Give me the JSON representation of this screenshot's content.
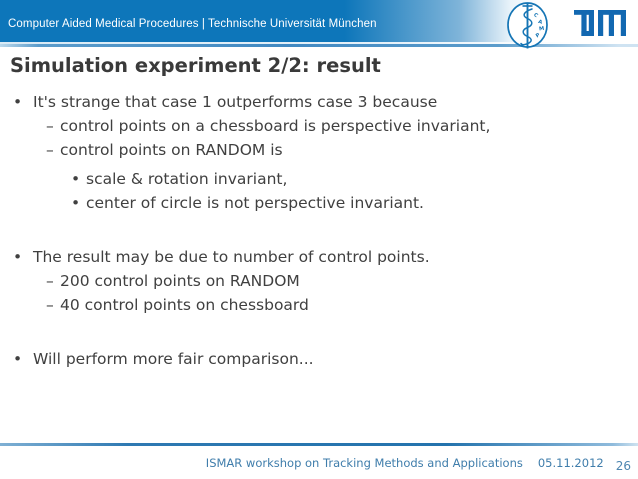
{
  "header": {
    "title": "Computer Aided Medical Procedures | Technische Universität München",
    "bar_color": "#0d76ba",
    "camp_letters": [
      "C",
      "A",
      "M",
      "P"
    ],
    "logo_blue": "#1268b1"
  },
  "slide": {
    "title": "Simulation experiment 2/2: result",
    "bullets": [
      {
        "level": 1,
        "marker": "•",
        "text": "It's strange that case 1 outperforms case 3 because"
      },
      {
        "level": 2,
        "marker": "–",
        "text": "control points on a chessboard is perspective invariant,"
      },
      {
        "level": 2,
        "marker": "–",
        "text": "control points on RANDOM is"
      },
      {
        "level": 3,
        "marker": "•",
        "text": "scale & rotation invariant,"
      },
      {
        "level": 3,
        "marker": "•",
        "text": "center of circle is not perspective invariant."
      },
      {
        "level": 1,
        "marker": "•",
        "text": "The result may be due to number of control points.",
        "para_break": true
      },
      {
        "level": 2,
        "marker": "–",
        "text": "200 control points on RANDOM"
      },
      {
        "level": 2,
        "marker": "–",
        "text": "40 control points on chessboard"
      },
      {
        "level": 1,
        "marker": "•",
        "text": "Will perform more fair comparison...",
        "para_break": true
      }
    ]
  },
  "footer": {
    "conference": "ISMAR workshop on Tracking Methods and Applications",
    "date": "05.11.2012",
    "page_number": "26",
    "text_color": "#3f7dab"
  }
}
